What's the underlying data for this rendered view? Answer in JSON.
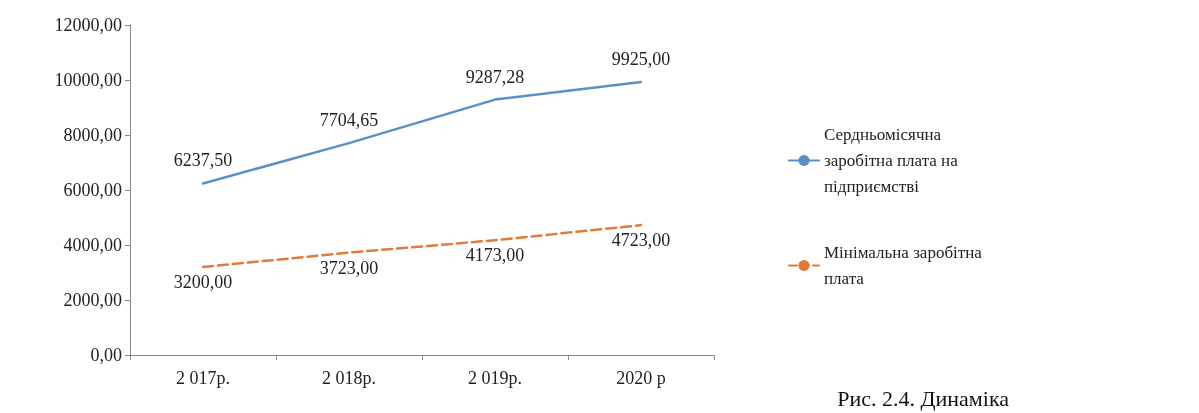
{
  "chart_data": {
    "type": "line",
    "categories": [
      "2 017р.",
      "2 018р.",
      "2 019р.",
      "2020 р"
    ],
    "series": [
      {
        "name": "Сердньомісячна заробітна плата на підприємстві",
        "color": "#5b8fc7",
        "line_style": "solid",
        "values": [
          6237.5,
          7704.65,
          9287.28,
          9925.0
        ],
        "value_labels": [
          "6237,50",
          "7704,65",
          "9287,28",
          "9925,00"
        ]
      },
      {
        "name": "Мінімальна заробітна плата",
        "color": "#e07b39",
        "line_style": "dashed",
        "values": [
          3200.0,
          3723.0,
          4173.0,
          4723.0
        ],
        "value_labels": [
          "3200,00",
          "3723,00",
          "4173,00",
          "4723,00"
        ]
      }
    ],
    "ylim": [
      0,
      12000
    ],
    "yticks": [
      {
        "value": 0,
        "label": "0,00"
      },
      {
        "value": 2000,
        "label": "2000,00"
      },
      {
        "value": 4000,
        "label": "4000,00"
      },
      {
        "value": 6000,
        "label": "6000,00"
      },
      {
        "value": 8000,
        "label": "8000,00"
      },
      {
        "value": 10000,
        "label": "10000,00"
      },
      {
        "value": 12000,
        "label": "12000,00"
      }
    ],
    "grid": false,
    "legend": "right",
    "marker": "none",
    "annotations": [
      "Рис. 2.4. Динаміка"
    ]
  }
}
